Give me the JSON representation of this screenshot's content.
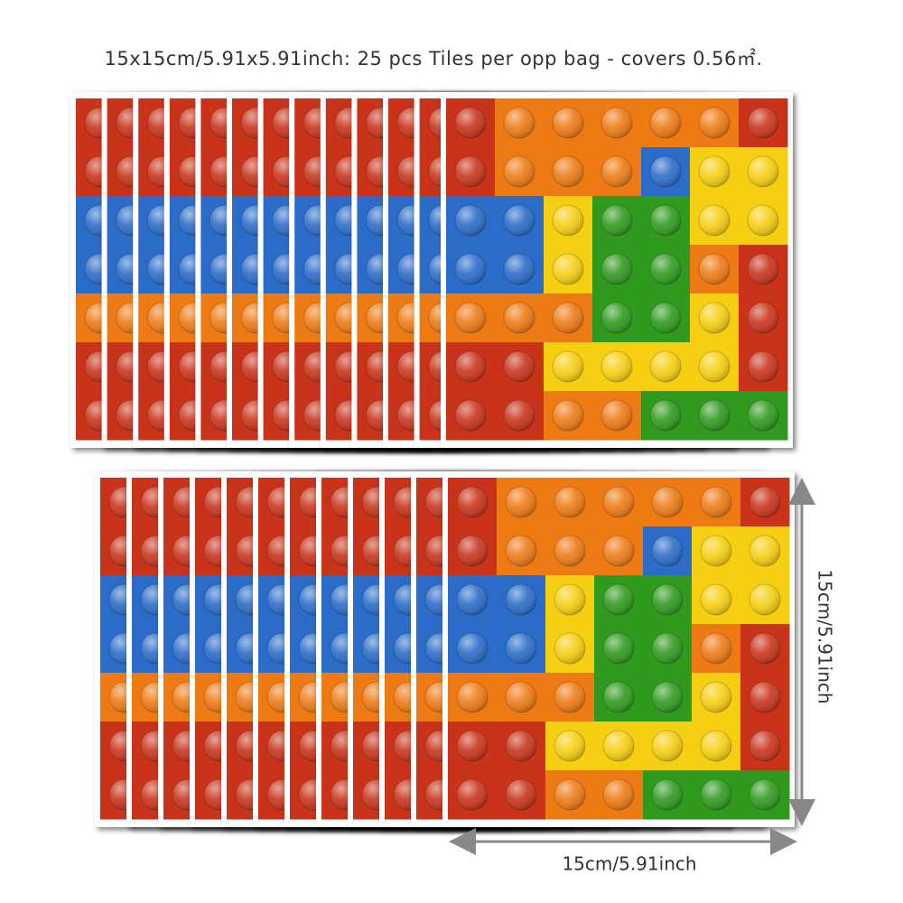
{
  "header": {
    "title": "15x15cm/5.91x5.91inch: 25 pcs Tiles per opp bag - covers 0.56㎡."
  },
  "dimensions": {
    "height_label": "15cm/5.91inch",
    "width_label": "15cm/5.91inch"
  }
}
